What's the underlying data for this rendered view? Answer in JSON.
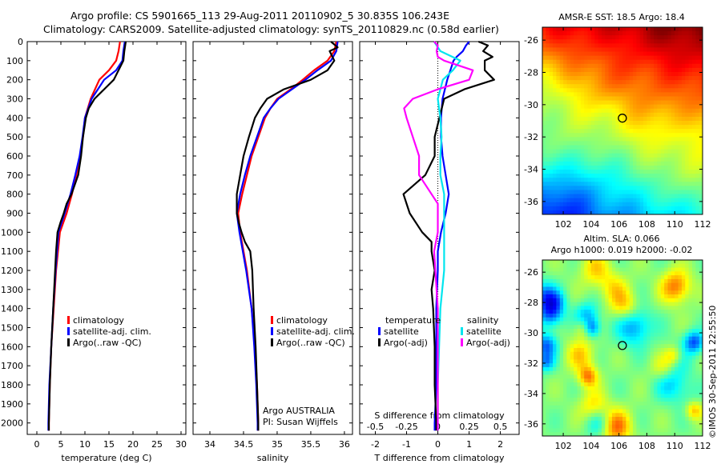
{
  "header": {
    "line1": "Argo profile: CS 5901665_113 29-Aug-2011 20110902_5 30.835S 106.243E",
    "line2": "Climatology: CARS2009. Satellite-adjusted climatology: synTS_20110829.nc (0.58d earlier)"
  },
  "side_stamp": "©IMOS 30-Sep-2011 22:55:50",
  "colors": {
    "climatology": "#ff0000",
    "satellite": "#0000ff",
    "argo": "#000000",
    "salinity_satellite": "#00e5ee",
    "salinity_argo": "#ff00ff"
  },
  "chart_data": [
    {
      "type": "line",
      "id": "temperature",
      "xlabel": "temperature (deg C)",
      "ylabel": "",
      "xlim": [
        -2,
        31
      ],
      "ylim": [
        2060,
        0
      ],
      "y_reversed": true,
      "xticks": [
        0,
        5,
        10,
        15,
        20,
        25,
        30
      ],
      "xtick_labels": [
        "0",
        "5",
        "10",
        "15",
        "20",
        "25",
        "30"
      ],
      "yticks": [
        0,
        100,
        200,
        300,
        400,
        500,
        600,
        700,
        800,
        900,
        1000,
        1100,
        1200,
        1300,
        1400,
        1500,
        1600,
        1700,
        1800,
        1900,
        2000
      ],
      "legend": {
        "placement": "lower-center",
        "entries": [
          "climatology",
          "satellite-adj. clim.",
          "Argo(..raw -QC)"
        ]
      },
      "series": [
        {
          "name": "climatology",
          "color": "#ff0000",
          "depth": [
            0,
            50,
            100,
            150,
            200,
            300,
            400,
            500,
            600,
            700,
            800,
            900,
            1000,
            1200,
            1400,
            1600,
            1800,
            2000,
            2040
          ],
          "values": [
            17.3,
            17.0,
            16.5,
            15.0,
            13.0,
            11.2,
            10.0,
            9.6,
            9.0,
            8.2,
            7.3,
            6.2,
            4.8,
            4.0,
            3.5,
            3.0,
            2.7,
            2.5,
            2.5
          ]
        },
        {
          "name": "satellite-adj. clim.",
          "color": "#0000ff",
          "depth": [
            0,
            50,
            100,
            150,
            200,
            300,
            400,
            500,
            600,
            700,
            800,
            900,
            1000,
            1200,
            1400,
            1600,
            1800,
            2000,
            2040
          ],
          "values": [
            18.3,
            18.0,
            17.8,
            16.5,
            14.0,
            11.4,
            10.0,
            9.5,
            8.9,
            8.0,
            7.0,
            5.8,
            4.5,
            3.9,
            3.4,
            3.0,
            2.6,
            2.4,
            2.4
          ]
        },
        {
          "name": "Argo(..raw -QC)",
          "color": "#000000",
          "depth": [
            0,
            50,
            100,
            150,
            200,
            250,
            300,
            350,
            400,
            500,
            600,
            700,
            800,
            850,
            900,
            950,
            1000,
            1100,
            1200,
            1400,
            1600,
            1800,
            2000,
            2040
          ],
          "values": [
            18.5,
            18.2,
            18.0,
            17.0,
            16.0,
            14.0,
            12.0,
            10.8,
            10.2,
            9.6,
            9.2,
            8.6,
            7.2,
            6.2,
            5.6,
            4.9,
            4.3,
            4.0,
            3.8,
            3.4,
            3.0,
            2.7,
            2.5,
            2.5
          ]
        }
      ]
    },
    {
      "type": "line",
      "id": "salinity",
      "xlabel": "salinity",
      "ylabel": "",
      "xlim": [
        33.75,
        36.12
      ],
      "ylim": [
        2060,
        0
      ],
      "y_reversed": true,
      "xticks": [
        34,
        34.5,
        35,
        35.5,
        36
      ],
      "xtick_labels": [
        "34",
        "34.5",
        "35",
        "35.5",
        "36"
      ],
      "legend": {
        "placement": "lower-center",
        "entries": [
          "climatology",
          "satellite-adj. clim.",
          "Argo(..raw -QC)"
        ]
      },
      "annotations": [
        "Argo AUSTRALIA",
        "PI: Susan Wijffels"
      ],
      "series": [
        {
          "name": "climatology",
          "color": "#ff0000",
          "depth": [
            0,
            50,
            100,
            150,
            200,
            250,
            300,
            350,
            400,
            500,
            600,
            700,
            800,
            900,
            1000,
            1200,
            1400,
            1600,
            1800,
            2000,
            2040
          ],
          "values": [
            35.88,
            35.85,
            35.75,
            35.55,
            35.38,
            35.2,
            35.0,
            34.9,
            34.82,
            34.72,
            34.62,
            34.55,
            34.48,
            34.42,
            34.45,
            34.55,
            34.62,
            34.67,
            34.7,
            34.72,
            34.72
          ]
        },
        {
          "name": "satellite-adj. clim.",
          "color": "#0000ff",
          "depth": [
            0,
            50,
            100,
            150,
            200,
            250,
            300,
            350,
            400,
            500,
            600,
            700,
            800,
            900,
            1000,
            1200,
            1400,
            1600,
            1800,
            2000,
            2040
          ],
          "values": [
            35.9,
            35.88,
            35.8,
            35.6,
            35.42,
            35.22,
            35.02,
            34.9,
            34.8,
            34.7,
            34.6,
            34.52,
            34.45,
            34.4,
            34.44,
            34.54,
            34.62,
            34.66,
            34.69,
            34.71,
            34.71
          ]
        },
        {
          "name": "Argo(..raw -QC)",
          "color": "#000000",
          "depth": [
            0,
            30,
            50,
            100,
            150,
            200,
            250,
            300,
            350,
            400,
            500,
            600,
            700,
            800,
            900,
            950,
            1000,
            1050,
            1100,
            1200,
            1400,
            1600,
            1800,
            2000,
            2040
          ],
          "values": [
            35.8,
            35.9,
            35.78,
            35.85,
            35.75,
            35.5,
            35.1,
            34.85,
            34.75,
            34.67,
            34.58,
            34.5,
            34.45,
            34.4,
            34.4,
            34.43,
            34.47,
            34.52,
            34.6,
            34.63,
            34.65,
            34.68,
            34.7,
            34.72,
            34.72
          ]
        }
      ]
    },
    {
      "type": "line",
      "id": "differences",
      "xlabel": "T difference from climatology",
      "xlabel2": "S difference from climatology",
      "xlim": [
        -2.5,
        2.6
      ],
      "ylim": [
        2060,
        0
      ],
      "y_reversed": true,
      "xticks": [
        -2,
        -1,
        0,
        1,
        2
      ],
      "xtick_labels": [
        "-2",
        "-1",
        "0",
        "1",
        "2"
      ],
      "xticks_salinity": [
        -0.5,
        -0.25,
        0,
        0.25,
        0.5
      ],
      "xtick_labels_salinity": [
        "-0.5",
        "-0.25",
        "0",
        "0.25",
        "0.5"
      ],
      "legend_groups": {
        "temperature": [
          "satellite",
          "Argo(-adj)"
        ],
        "salinity": [
          "satellite",
          "Argo(-adj)"
        ]
      },
      "series": [
        {
          "name": "temperature satellite",
          "color": "#0000ff",
          "depth": [
            0,
            20,
            50,
            80,
            100,
            150,
            200,
            300,
            400,
            500,
            600,
            700,
            800,
            900,
            1000,
            1100,
            1200,
            1400,
            1600,
            1800,
            2000,
            2040
          ],
          "values": [
            1.0,
            0.9,
            0.8,
            0.6,
            0.5,
            0.4,
            0.3,
            0.15,
            0.1,
            0.1,
            0.15,
            0.25,
            0.35,
            0.25,
            0.1,
            0.0,
            0.0,
            -0.05,
            -0.05,
            -0.05,
            -0.1,
            -0.1
          ]
        },
        {
          "name": "temperature Argo(-adj)",
          "color": "#000000",
          "depth": [
            0,
            20,
            50,
            80,
            100,
            150,
            200,
            250,
            300,
            400,
            500,
            600,
            700,
            800,
            850,
            900,
            1000,
            1050,
            1100,
            1200,
            1300,
            1400,
            1600,
            1800,
            2000,
            2040
          ],
          "values": [
            1.3,
            1.6,
            1.45,
            1.75,
            1.5,
            1.5,
            1.8,
            0.85,
            0.2,
            0.05,
            -0.1,
            -0.1,
            -0.4,
            -1.1,
            -1.0,
            -0.9,
            -0.5,
            -0.2,
            -0.2,
            -0.1,
            -0.2,
            -0.15,
            -0.1,
            -0.1,
            -0.05,
            -0.05
          ]
        },
        {
          "name": "salinity satellite",
          "color": "#00e5ee",
          "depth": [
            0,
            50,
            100,
            150,
            200,
            250,
            300,
            400,
            500,
            600,
            700,
            800,
            1000,
            1200,
            1400,
            1600,
            1800,
            2000,
            2040
          ],
          "values": [
            -0.03,
            0.02,
            0.18,
            0.12,
            0.04,
            0.02,
            0.0,
            0.02,
            0.03,
            0.02,
            0.02,
            0.05,
            0.05,
            0.05,
            0.02,
            0.01,
            0.0,
            0.0,
            0.0
          ]
        },
        {
          "name": "salinity Argo(-adj)",
          "color": "#ff00ff",
          "depth": [
            0,
            20,
            50,
            80,
            100,
            150,
            200,
            250,
            300,
            350,
            400,
            500,
            600,
            700,
            800,
            850,
            900,
            1000,
            1100,
            1200,
            1400,
            1600,
            1800,
            2000,
            2040
          ],
          "values": [
            -0.03,
            0.0,
            -0.01,
            0.0,
            0.05,
            0.28,
            0.25,
            0.0,
            -0.2,
            -0.27,
            -0.25,
            -0.2,
            -0.15,
            -0.15,
            -0.05,
            0.0,
            0.0,
            0.0,
            -0.03,
            -0.02,
            0.0,
            0.0,
            0.0,
            0.0,
            0.0
          ]
        }
      ]
    },
    {
      "type": "heatmap",
      "id": "sst_map",
      "title": "AMSR-E SST: 18.5 Argo: 18.4",
      "xlim": [
        100.5,
        112
      ],
      "ylim": [
        -36.8,
        -25.2
      ],
      "xticks": [
        102,
        104,
        106,
        108,
        110,
        112
      ],
      "yticks": [
        -26,
        -28,
        -30,
        -32,
        -34,
        -36
      ],
      "ytick_labels": [
        "-26",
        "-28",
        "-30",
        "-32",
        "-34",
        "-36"
      ],
      "marker": {
        "lon": 106.243,
        "lat": -30.835
      },
      "value_range": [
        14,
        24
      ]
    },
    {
      "type": "heatmap",
      "id": "sla_map",
      "title": "Altim. SLA: 0.066",
      "subtitle": "Argo h1000: 0.019 h2000: -0.02",
      "xlim": [
        100.5,
        112
      ],
      "ylim": [
        -36.8,
        -25.2
      ],
      "xticks": [
        102,
        104,
        106,
        108,
        110,
        112
      ],
      "yticks": [
        -26,
        -28,
        -30,
        -32,
        -34,
        -36
      ],
      "ytick_labels": [
        "-26",
        "-28",
        "-30",
        "-32",
        "-34",
        "-36"
      ],
      "marker": {
        "lon": 106.243,
        "lat": -30.835
      },
      "value_range": [
        -0.3,
        0.3
      ]
    }
  ]
}
